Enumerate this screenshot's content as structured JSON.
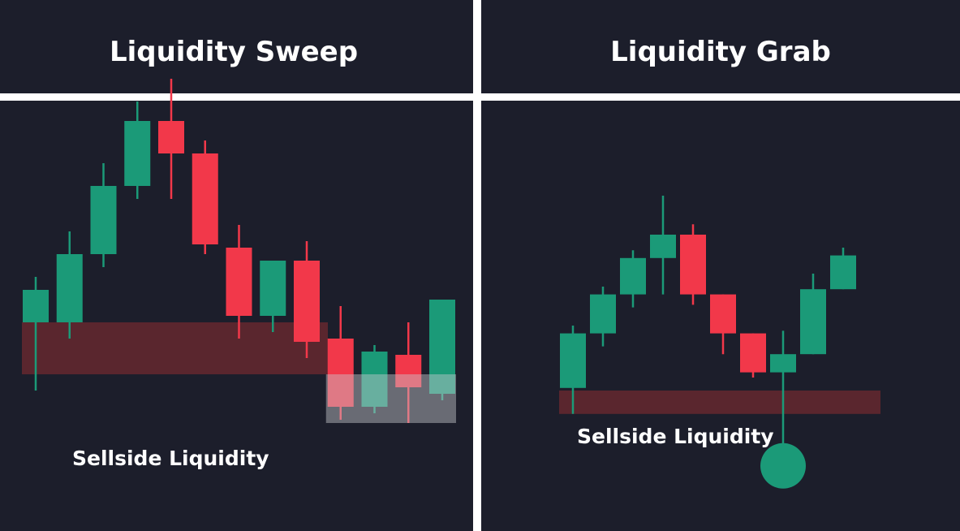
{
  "colors": {
    "background": "#1c1e2b",
    "divider": "#ffffff",
    "bullish": "#1b9a78",
    "bearish": "#f2384a",
    "liquidity_zone": "#5a262e",
    "sweep_highlight": "#c8c9cf",
    "grab_marker": "#1b9a78",
    "title_text": "#ffffff"
  },
  "chart_data": [
    {
      "type": "candlestick",
      "title": "Liquidity Sweep",
      "annotation": "Sellside Liquidity",
      "ylim": [
        0,
        100
      ],
      "liquidity_zone": {
        "from_candle": 0,
        "to_candle": 9,
        "low": 22,
        "high": 38
      },
      "sweep_highlight": {
        "from_candle": 9,
        "to_candle": 13,
        "low": 7,
        "high": 22
      },
      "candles": [
        {
          "open": 38,
          "close": 48,
          "high": 52,
          "low": 17
        },
        {
          "open": 38,
          "close": 59,
          "high": 66,
          "low": 33
        },
        {
          "open": 59,
          "close": 80,
          "high": 87,
          "low": 55
        },
        {
          "open": 80,
          "close": 100,
          "high": 106,
          "low": 76
        },
        {
          "open": 100,
          "close": 90,
          "high": 113,
          "low": 76
        },
        {
          "open": 90,
          "close": 62,
          "high": 94,
          "low": 59
        },
        {
          "open": 61,
          "close": 40,
          "high": 68,
          "low": 33
        },
        {
          "open": 40,
          "close": 57,
          "high": 57,
          "low": 35
        },
        {
          "open": 57,
          "close": 32,
          "high": 63,
          "low": 27
        },
        {
          "open": 33,
          "close": 12,
          "high": 43,
          "low": 8
        },
        {
          "open": 12,
          "close": 29,
          "high": 31,
          "low": 10
        },
        {
          "open": 28,
          "close": 18,
          "high": 38,
          "low": 7
        },
        {
          "open": 16,
          "close": 45,
          "high": 45,
          "low": 14
        }
      ]
    },
    {
      "type": "candlestick",
      "title": "Liquidity Grab",
      "annotation": "Sellside Liquidity",
      "ylim": [
        0,
        100
      ],
      "liquidity_zone": {
        "from_candle": 0,
        "to_candle": 10,
        "low": 36,
        "high": 45
      },
      "grab_marker": {
        "candle": 7,
        "value": 16
      },
      "candles": [
        {
          "open": 46,
          "close": 67,
          "high": 70,
          "low": 36
        },
        {
          "open": 67,
          "close": 82,
          "high": 85,
          "low": 62
        },
        {
          "open": 82,
          "close": 96,
          "high": 99,
          "low": 77
        },
        {
          "open": 96,
          "close": 105,
          "high": 120,
          "low": 82
        },
        {
          "open": 105,
          "close": 82,
          "high": 109,
          "low": 78
        },
        {
          "open": 82,
          "close": 67,
          "high": 82,
          "low": 59
        },
        {
          "open": 67,
          "close": 52,
          "high": 67,
          "low": 50
        },
        {
          "open": 52,
          "close": 59,
          "high": 68,
          "low": 24
        },
        {
          "open": 59,
          "close": 84,
          "high": 90,
          "low": 59
        },
        {
          "open": 84,
          "close": 97,
          "high": 100,
          "low": 84
        }
      ]
    }
  ]
}
